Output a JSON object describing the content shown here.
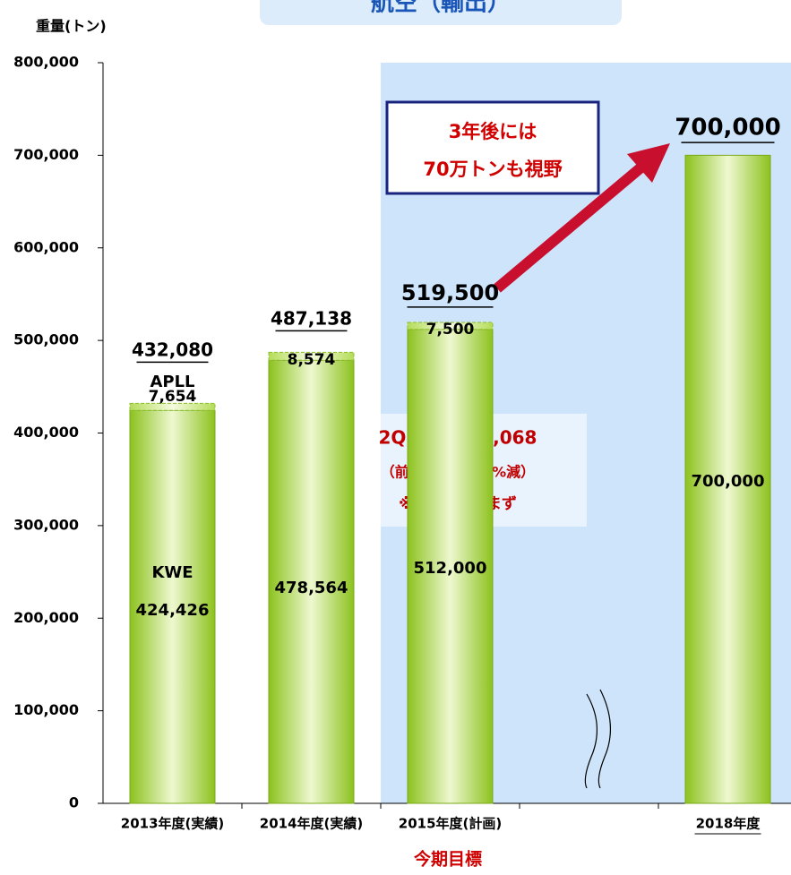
{
  "chart_data": {
    "type": "bar",
    "stacked": true,
    "title": "航空（輸出）",
    "y_label": "重量(トン)",
    "categories": [
      "2013年度(実績)",
      "2014年度(実績)",
      "2015年度(計画)",
      null,
      "2018年度"
    ],
    "series": [
      {
        "name": "KWE",
        "color": "#9acd32",
        "values": [
          424426,
          478564,
          512000,
          null,
          700000
        ],
        "value_labels": [
          "424,426",
          "478,564",
          "512,000",
          null,
          "700,000"
        ]
      },
      {
        "name": "APLL",
        "color": "#c8e68a",
        "values": [
          7654,
          8574,
          7500,
          null,
          null
        ],
        "value_labels": [
          "7,654",
          "8,574",
          "7,500",
          null,
          null
        ]
      }
    ],
    "totals": [
      432080,
      487138,
      519500,
      null,
      700000
    ],
    "total_labels": [
      "432,080",
      "487,138",
      "519,500",
      null,
      "700,000"
    ],
    "ylim": [
      0,
      800000
    ],
    "yticks": [
      0,
      {
        "value": 100000,
        "label": "100,000"
      },
      {
        "value": 200000,
        "label": "200,000"
      },
      {
        "value": 300000,
        "label": "300,000"
      },
      {
        "value": 400000,
        "label": "400,000"
      },
      {
        "value": 500000,
        "label": "500,000"
      },
      {
        "value": 600000,
        "label": "600,000"
      },
      {
        "value": 700000,
        "label": "700,000"
      },
      {
        "value": 800000,
        "label": "800,000"
      }
    ],
    "annotations": {
      "target_line1": "3年後には",
      "target_line2": "70万トンも視野",
      "q2_line1": "2Q時点: 229,068",
      "q2_line2": "（前年同期比0.9%減）",
      "q2_line3": "※APLLは含まず",
      "current_target": "今期目標"
    }
  }
}
